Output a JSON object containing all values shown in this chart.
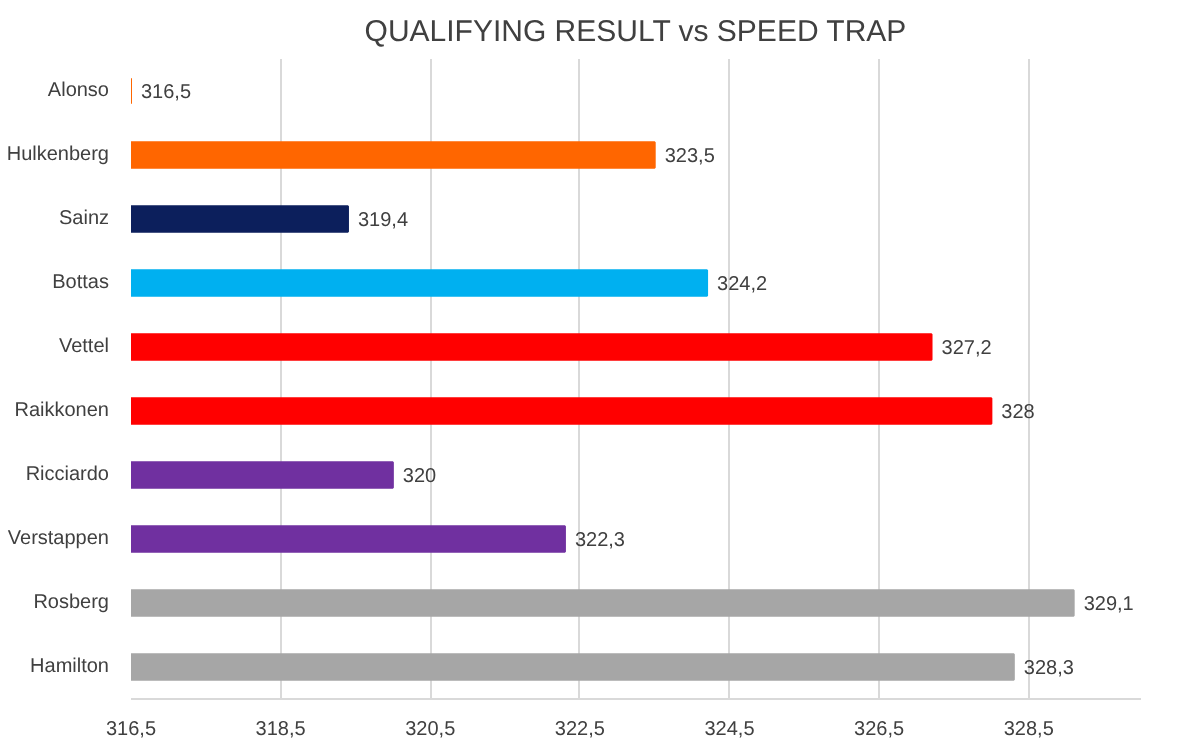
{
  "chart_data": {
    "type": "bar",
    "orientation": "horizontal",
    "title": "QUALIFYING RESULT vs SPEED TRAP",
    "categories": [
      "Alonso",
      "Hulkenberg",
      "Sainz",
      "Bottas",
      "Vettel",
      "Raikkonen",
      "Ricciardo",
      "Verstappen",
      "Rosberg",
      "Hamilton"
    ],
    "values": [
      316.5,
      323.5,
      319.4,
      324.2,
      327.2,
      328,
      320,
      322.3,
      329.1,
      328.3
    ],
    "value_labels": [
      "316,5",
      "323,5",
      "319,4",
      "324,2",
      "327,2",
      "328",
      "320",
      "322,3",
      "329,1",
      "328,3"
    ],
    "colors": [
      "#ff6600",
      "#ff6600",
      "#0c1f5c",
      "#00b0f0",
      "#ff0000",
      "#ff0000",
      "#7030a0",
      "#7030a0",
      "#a6a6a6",
      "#a6a6a6"
    ],
    "xlim": [
      316.5,
      330.0
    ],
    "xticks": [
      {
        "value": 316.5,
        "label": "316,5"
      },
      {
        "value": 318.5,
        "label": "318,5"
      },
      {
        "value": 320.5,
        "label": "320,5"
      },
      {
        "value": 322.5,
        "label": "322,5"
      },
      {
        "value": 324.5,
        "label": "324,5"
      },
      {
        "value": 326.5,
        "label": "326,5"
      },
      {
        "value": 328.5,
        "label": "328,5"
      }
    ],
    "grid": "x"
  }
}
